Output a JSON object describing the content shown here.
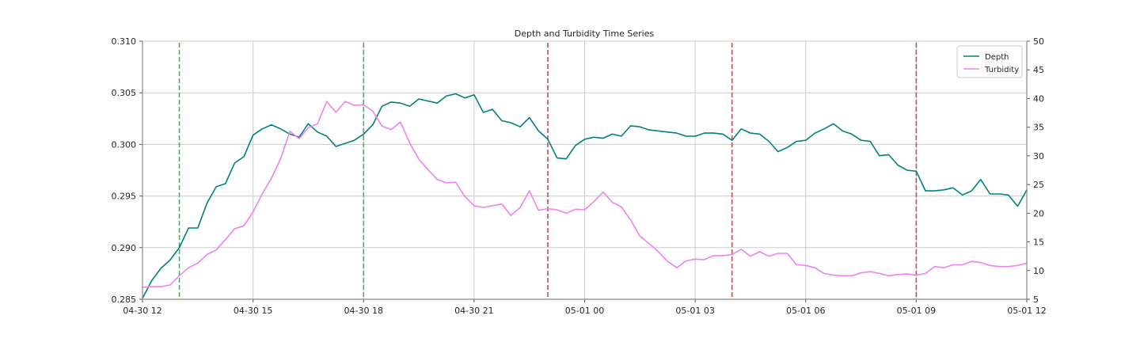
{
  "chart_data": {
    "type": "line",
    "title": "Depth and Turbidity Time Series",
    "xlabel": "",
    "ylabel_left": "",
    "ylabel_right": "",
    "x_tick_labels": [
      "04-30 12",
      "04-30 15",
      "04-30 18",
      "04-30 21",
      "05-01 00",
      "05-01 03",
      "05-01 06",
      "05-01 09",
      "05-01 12"
    ],
    "x_range_hours": [
      0,
      24
    ],
    "left_axis": {
      "ylim": [
        0.285,
        0.31
      ],
      "ticks": [
        "0.285",
        "0.290",
        "0.295",
        "0.300",
        "0.305",
        "0.310"
      ]
    },
    "right_axis": {
      "ylim": [
        5,
        50
      ],
      "ticks": [
        "5",
        "10",
        "15",
        "20",
        "25",
        "30",
        "35",
        "40",
        "45",
        "50"
      ]
    },
    "grid": true,
    "legend_position": "top-right",
    "series": [
      {
        "name": "Depth",
        "axis": "left",
        "color": "#008080",
        "x": [
          0,
          0.25,
          0.5,
          0.75,
          1,
          1.25,
          1.5,
          1.75,
          2,
          2.25,
          2.5,
          2.75,
          3,
          3.25,
          3.5,
          3.75,
          4,
          4.25,
          4.5,
          4.75,
          5,
          5.25,
          5.5,
          5.75,
          6,
          6.25,
          6.5,
          6.75,
          7,
          7.25,
          7.5,
          7.75,
          8,
          8.25,
          8.5,
          8.75,
          9,
          9.25,
          9.5,
          9.75,
          10,
          10.25,
          10.5,
          10.75,
          11,
          11.25,
          11.5,
          11.75,
          12,
          12.25,
          12.5,
          12.75,
          13,
          13.25,
          13.5,
          13.75,
          14,
          14.25,
          14.5,
          14.75,
          15,
          15.25,
          15.5,
          15.75,
          16,
          16.25,
          16.5,
          16.75,
          17,
          17.25,
          17.5,
          17.75,
          18,
          18.25,
          18.5,
          18.75,
          19,
          19.25,
          19.5,
          19.75,
          20,
          20.25,
          20.5,
          20.75,
          21,
          21.25,
          21.5,
          21.75,
          22,
          22.25,
          22.5,
          22.75,
          23,
          23.25,
          23.5,
          23.75,
          24
        ],
        "values": [
          0.2851,
          0.2868,
          0.288,
          0.2888,
          0.29,
          0.2919,
          0.2919,
          0.2943,
          0.2959,
          0.2962,
          0.2982,
          0.2988,
          0.3009,
          0.3015,
          0.3019,
          0.3015,
          0.301,
          0.3007,
          0.302,
          0.3012,
          0.3008,
          0.2998,
          0.3001,
          0.3004,
          0.301,
          0.3019,
          0.3037,
          0.3041,
          0.304,
          0.3037,
          0.3044,
          0.3042,
          0.304,
          0.3047,
          0.3049,
          0.3045,
          0.3048,
          0.3031,
          0.3034,
          0.3023,
          0.3021,
          0.3017,
          0.3026,
          0.3013,
          0.3005,
          0.2987,
          0.2986,
          0.2999,
          0.3005,
          0.3007,
          0.3006,
          0.301,
          0.3008,
          0.3018,
          0.3017,
          0.3014,
          0.3013,
          0.3012,
          0.3011,
          0.3008,
          0.3008,
          0.3011,
          0.3011,
          0.301,
          0.3004,
          0.3015,
          0.3011,
          0.301,
          0.3003,
          0.2993,
          0.2997,
          0.3003,
          0.3004,
          0.3011,
          0.3015,
          0.302,
          0.3013,
          0.301,
          0.3004,
          0.3003,
          0.2989,
          0.299,
          0.298,
          0.2975,
          0.2974,
          0.2955,
          0.2955,
          0.2956,
          0.2958,
          0.2951,
          0.2955,
          0.2966,
          0.2952,
          0.2952,
          0.2951,
          0.294,
          0.2956
        ]
      },
      {
        "name": "Turbidity",
        "axis": "right",
        "color": "#ee82ee",
        "x": [
          0,
          0.25,
          0.5,
          0.75,
          1,
          1.25,
          1.5,
          1.75,
          2,
          2.25,
          2.5,
          2.75,
          3,
          3.25,
          3.5,
          3.75,
          4,
          4.25,
          4.5,
          4.75,
          5,
          5.25,
          5.5,
          5.75,
          6,
          6.25,
          6.5,
          6.75,
          7,
          7.25,
          7.5,
          7.75,
          8,
          8.25,
          8.5,
          8.75,
          9,
          9.25,
          9.5,
          9.75,
          10,
          10.25,
          10.5,
          10.75,
          11,
          11.25,
          11.5,
          11.75,
          12,
          12.25,
          12.5,
          12.75,
          13,
          13.25,
          13.5,
          13.75,
          14,
          14.25,
          14.5,
          14.75,
          15,
          15.25,
          15.5,
          15.75,
          16,
          16.25,
          16.5,
          16.75,
          17,
          17.25,
          17.5,
          17.75,
          18,
          18.25,
          18.5,
          18.75,
          19,
          19.25,
          19.5,
          19.75,
          20,
          20.25,
          20.5,
          20.75,
          21,
          21.25,
          21.5,
          21.75,
          22,
          22.25,
          22.5,
          22.75,
          23,
          23.25,
          23.5,
          23.75,
          24
        ],
        "values": [
          7.1,
          7.2,
          7.2,
          7.5,
          9.1,
          10.5,
          11.3,
          12.8,
          13.6,
          15.4,
          17.3,
          17.8,
          20.2,
          23.4,
          26.1,
          29.5,
          34.3,
          33.0,
          34.9,
          35.6,
          39.5,
          37.6,
          39.5,
          38.8,
          38.9,
          37.8,
          35.2,
          34.6,
          35.9,
          32.3,
          29.4,
          27.6,
          25.9,
          25.3,
          25.4,
          22.9,
          21.3,
          21.0,
          21.3,
          21.6,
          19.6,
          21.0,
          23.9,
          20.5,
          20.8,
          20.6,
          20.0,
          20.7,
          20.6,
          22.0,
          23.7,
          21.9,
          21.1,
          18.8,
          16.0,
          14.7,
          13.3,
          11.6,
          10.5,
          11.7,
          12.0,
          11.9,
          12.6,
          12.6,
          12.8,
          13.7,
          12.5,
          13.3,
          12.5,
          13.0,
          13.0,
          11.0,
          10.9,
          10.5,
          9.5,
          9.2,
          9.1,
          9.1,
          9.6,
          9.8,
          9.5,
          9.1,
          9.3,
          9.4,
          9.2,
          9.5,
          10.7,
          10.5,
          11.0,
          11.0,
          11.6,
          11.4,
          10.9,
          10.7,
          10.7,
          10.9,
          11.3
        ]
      }
    ],
    "vertical_lines": [
      {
        "x": 1.0,
        "color": "#55a868",
        "style": "dashed"
      },
      {
        "x": 6.0,
        "color": "#55a868",
        "style": "dashed"
      },
      {
        "x": 11.0,
        "color": "#c44e52",
        "style": "dashed"
      },
      {
        "x": 16.0,
        "color": "#c44e52",
        "style": "dashed"
      },
      {
        "x": 21.0,
        "color": "#c44e52",
        "style": "dashed"
      }
    ]
  }
}
